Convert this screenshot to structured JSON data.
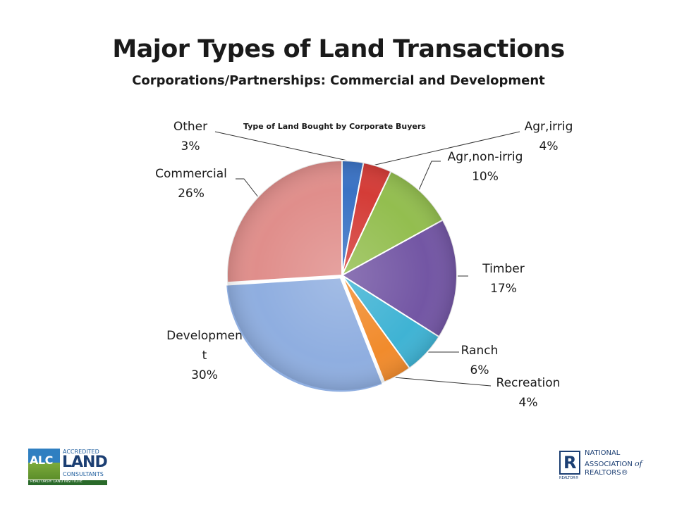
{
  "slide": {
    "title": "Major Types of Land Transactions",
    "subtitle": "Corporations/Partnerships:  Commercial and Development"
  },
  "chart_data": {
    "type": "pie",
    "title": "Type of Land Bought by Corporate Buyers",
    "start_angle_deg": 90,
    "direction": "clockwise",
    "slices": [
      {
        "label": "Other",
        "value": 3,
        "pct_label": "3%",
        "color": "#3A72C4"
      },
      {
        "label": "Agr,irrig",
        "value": 4,
        "pct_label": "4%",
        "color": "#D43C37"
      },
      {
        "label": "Agr,non-irrig",
        "value": 10,
        "pct_label": "10%",
        "color": "#93BE4F"
      },
      {
        "label": "Timber",
        "value": 17,
        "pct_label": "17%",
        "color": "#7356A4"
      },
      {
        "label": "Ranch",
        "value": 6,
        "pct_label": "6%",
        "color": "#3FB3D4"
      },
      {
        "label": "Recreation",
        "value": 4,
        "pct_label": "4%",
        "color": "#F18B2C"
      },
      {
        "label": "Developmen t",
        "value": 30,
        "pct_label": "30%",
        "color": "#8FAEE0"
      },
      {
        "label": "Commercial",
        "value": 26,
        "pct_label": "26%",
        "color": "#E08E8B"
      }
    ],
    "legend": "none"
  },
  "logos": {
    "alc": {
      "badge": "ALC",
      "line1": "ACCREDITED",
      "line2": "LAND",
      "line3": "CONSULTANTS",
      "bar": "REALTORS® LAND INSTITUTE"
    },
    "nar": {
      "mark": "R",
      "mark_caption": "REALTOR®",
      "line1": "NATIONAL",
      "line2a": "ASSOCIATION",
      "line2b": "of",
      "line3": "REALTORS®"
    }
  }
}
